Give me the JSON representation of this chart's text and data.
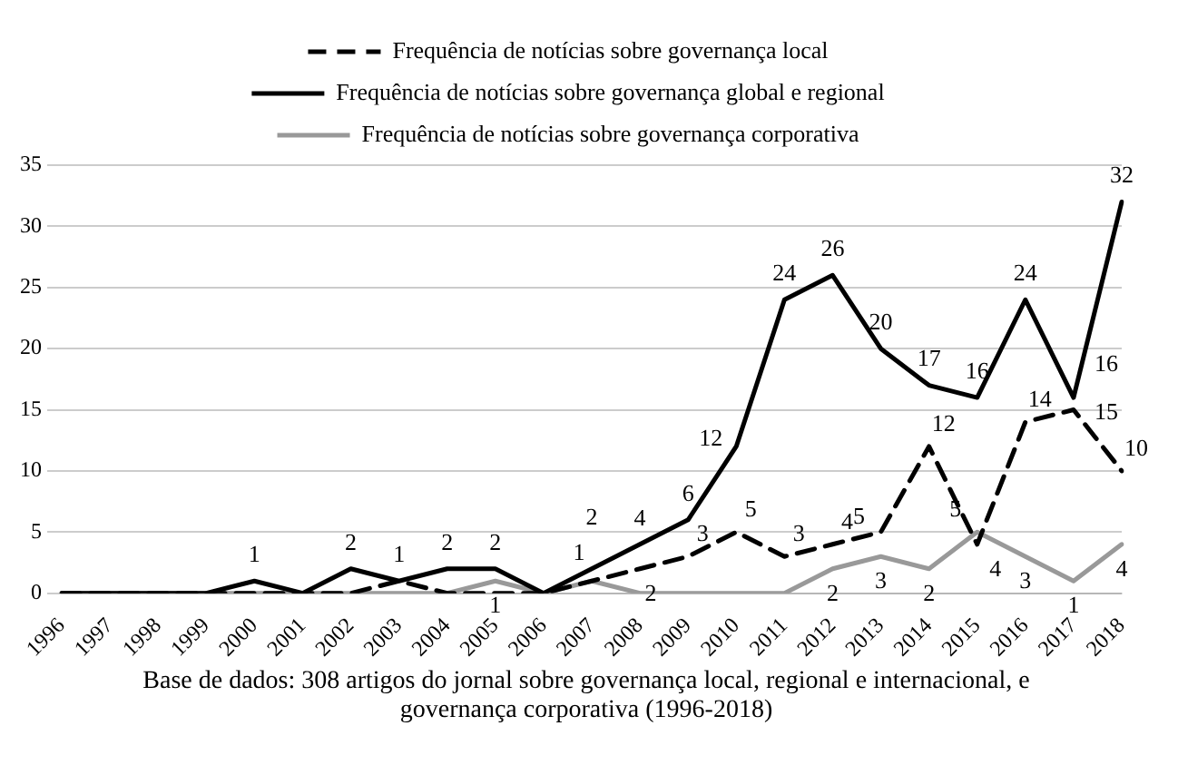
{
  "chart_data": {
    "type": "line",
    "categories": [
      "1996",
      "1997",
      "1998",
      "1999",
      "2000",
      "2001",
      "2002",
      "2003",
      "2004",
      "2005",
      "2006",
      "2007",
      "2008",
      "2009",
      "2010",
      "2011",
      "2012",
      "2013",
      "2014",
      "2015",
      "2016",
      "2017",
      "2018"
    ],
    "series": [
      {
        "name": "Frequência de notícias sobre governança local",
        "color": "#000000",
        "line_style": "dashed",
        "values": [
          0,
          0,
          0,
          0,
          0,
          0,
          0,
          1,
          0,
          0,
          0,
          1,
          2,
          3,
          5,
          3,
          4,
          5,
          12,
          4,
          14,
          15,
          10
        ],
        "value_labels": [
          null,
          null,
          null,
          null,
          null,
          null,
          null,
          null,
          null,
          null,
          null,
          "1",
          "2",
          "3",
          "5",
          "3",
          "4",
          "5",
          "12",
          "4",
          "14",
          "15",
          "10"
        ]
      },
      {
        "name": "Frequência de notícias sobre governança global e regional",
        "color": "#000000",
        "line_style": "solid",
        "values": [
          0,
          0,
          0,
          0,
          1,
          0,
          2,
          1,
          2,
          2,
          0,
          2,
          4,
          6,
          12,
          24,
          26,
          20,
          17,
          16,
          24,
          16,
          32
        ],
        "value_labels": [
          null,
          null,
          null,
          null,
          "1",
          null,
          "2",
          "1",
          "2",
          "2",
          null,
          "2",
          "4",
          "6",
          "12",
          "24",
          "26",
          "20",
          "17",
          "16",
          "24",
          "16",
          "32"
        ]
      },
      {
        "name": "Frequência de notícias sobre governança corporativa",
        "color": "#999999",
        "line_style": "solid",
        "values": [
          0,
          0,
          0,
          0,
          0,
          0,
          0,
          0,
          0,
          1,
          0,
          1,
          0,
          0,
          0,
          0,
          2,
          3,
          2,
          5,
          3,
          1,
          4
        ],
        "value_labels": [
          null,
          null,
          null,
          null,
          null,
          null,
          null,
          null,
          null,
          "1",
          null,
          null,
          null,
          null,
          null,
          null,
          "2",
          "3",
          "2",
          "5",
          "3",
          "1",
          "4"
        ]
      }
    ],
    "ylim": [
      0,
      35
    ],
    "yticks": [
      0,
      5,
      10,
      15,
      20,
      25,
      30,
      35
    ],
    "grid": "y",
    "legend": "top",
    "marker": "none",
    "annotations": [
      "Base de dados: 308 artigos do jornal sobre governança local, regional e internacional, e governança corporativa (1996-2018)"
    ]
  }
}
